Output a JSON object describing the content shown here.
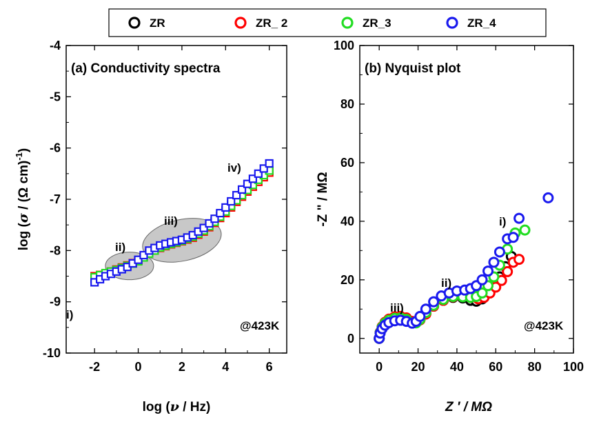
{
  "legend": [
    "ZR",
    "ZR_ 2",
    "ZR_3",
    "ZR_4"
  ],
  "series_colors": {
    "ZR": "#000000",
    "ZR_ 2": "#ff0000",
    "ZR_3": "#22dd22",
    "ZR_4": "#1a1aee"
  },
  "chart_data": [
    {
      "type": "line",
      "title": "(a) Conductivity spectra",
      "xlabel": "log (ν / Hz)",
      "ylabel": "log (σ / (Ω cm)⁻¹)",
      "xlim": [
        -3.3,
        6.8
      ],
      "ylim": [
        -10,
        -4
      ],
      "xticks": [
        -2,
        0,
        2,
        4,
        6
      ],
      "yticks": [
        -10,
        -9,
        -8,
        -7,
        -6,
        -5,
        -4
      ],
      "x": [
        -2.0,
        -1.5,
        -1.0,
        -0.5,
        0.0,
        0.5,
        1.0,
        1.5,
        2.0,
        2.5,
        3.0,
        3.5,
        4.0,
        4.5,
        5.0,
        5.5,
        6.0
      ],
      "series": [
        {
          "name": "ZR",
          "values": [
            -8.55,
            -8.45,
            -8.38,
            -8.3,
            -8.2,
            -8.05,
            -7.93,
            -7.86,
            -7.8,
            -7.72,
            -7.6,
            -7.43,
            -7.22,
            -7.0,
            -6.8,
            -6.62,
            -6.45
          ]
        },
        {
          "name": "ZR_ 2",
          "values": [
            -8.5,
            -8.45,
            -8.37,
            -8.29,
            -8.2,
            -8.05,
            -7.95,
            -7.88,
            -7.82,
            -7.75,
            -7.63,
            -7.46,
            -7.27,
            -7.05,
            -6.85,
            -6.66,
            -6.48
          ]
        },
        {
          "name": "ZR_3",
          "values": [
            -8.52,
            -8.44,
            -8.38,
            -8.3,
            -8.21,
            -8.06,
            -7.94,
            -7.87,
            -7.81,
            -7.73,
            -7.61,
            -7.44,
            -7.24,
            -7.02,
            -6.82,
            -6.62,
            -6.44
          ]
        },
        {
          "name": "ZR_4",
          "values": [
            -8.62,
            -8.5,
            -8.41,
            -8.32,
            -8.18,
            -8.0,
            -7.9,
            -7.84,
            -7.79,
            -7.7,
            -7.56,
            -7.38,
            -7.16,
            -6.92,
            -6.7,
            -6.5,
            -6.3
          ]
        }
      ],
      "annotations": [
        "i)",
        "ii)",
        "iii)",
        "iv)",
        "@423K"
      ]
    },
    {
      "type": "scatter",
      "title": "(b) Nyquist plot",
      "xlabel": "Z ′ / MΩ",
      "ylabel": "-Z \" / MΩ",
      "xlim": [
        -10,
        100
      ],
      "ylim": [
        -5,
        100
      ],
      "xticks": [
        0,
        20,
        40,
        60,
        80,
        100
      ],
      "yticks": [
        0,
        20,
        40,
        60,
        80,
        100
      ],
      "series": [
        {
          "name": "ZR",
          "points": [
            [
              0,
              0
            ],
            [
              0.5,
              2
            ],
            [
              1.5,
              3.8
            ],
            [
              3,
              5.2
            ],
            [
              5,
              6.2
            ],
            [
              8,
              7
            ],
            [
              11,
              7.2
            ],
            [
              14,
              6.7
            ],
            [
              17,
              5.5
            ],
            [
              19,
              5.5
            ],
            [
              21,
              6.5
            ],
            [
              24,
              8.5
            ],
            [
              28,
              11
            ],
            [
              33,
              13
            ],
            [
              38,
              14
            ],
            [
              43,
              13.8
            ],
            [
              47,
              13
            ],
            [
              50,
              12.7
            ],
            [
              53,
              13.5
            ],
            [
              56,
              15.5
            ],
            [
              59,
              18
            ],
            [
              62,
              21
            ],
            [
              65,
              24.5
            ],
            [
              68,
              28
            ]
          ]
        },
        {
          "name": "ZR_ 2",
          "points": [
            [
              0,
              0
            ],
            [
              0.5,
              2.1
            ],
            [
              1.5,
              4
            ],
            [
              3,
              5.5
            ],
            [
              5,
              6.6
            ],
            [
              8,
              7.4
            ],
            [
              11,
              7.5
            ],
            [
              14,
              7
            ],
            [
              17,
              5.8
            ],
            [
              19,
              5.6
            ],
            [
              21,
              6.3
            ],
            [
              24,
              8.3
            ],
            [
              28,
              11
            ],
            [
              33,
              13
            ],
            [
              38,
              14.2
            ],
            [
              43,
              14.5
            ],
            [
              47,
              14
            ],
            [
              51,
              13.5
            ],
            [
              54,
              14
            ],
            [
              57,
              15.5
            ],
            [
              60,
              17.5
            ],
            [
              63,
              19.8
            ],
            [
              66,
              22.8
            ],
            [
              69,
              26
            ],
            [
              72,
              27
            ]
          ]
        },
        {
          "name": "ZR_3",
          "points": [
            [
              0,
              0
            ],
            [
              0.5,
              2
            ],
            [
              1.5,
              3.8
            ],
            [
              3,
              5.2
            ],
            [
              5,
              6.2
            ],
            [
              8,
              6.9
            ],
            [
              11,
              7
            ],
            [
              14,
              6.5
            ],
            [
              17,
              5.3
            ],
            [
              19,
              5.3
            ],
            [
              21,
              6.5
            ],
            [
              24,
              8.8
            ],
            [
              28,
              11.3
            ],
            [
              33,
              13.3
            ],
            [
              38,
              14.3
            ],
            [
              43,
              14.2
            ],
            [
              47,
              14
            ],
            [
              50,
              14.3
            ],
            [
              53,
              15.5
            ],
            [
              56,
              18
            ],
            [
              59,
              21
            ],
            [
              62,
              25
            ],
            [
              66,
              30.5
            ],
            [
              70,
              36
            ],
            [
              75,
              37
            ]
          ]
        },
        {
          "name": "ZR_4",
          "points": [
            [
              0,
              0
            ],
            [
              0.5,
              1.8
            ],
            [
              1.5,
              3.3
            ],
            [
              3,
              4.5
            ],
            [
              5,
              5.4
            ],
            [
              8,
              6
            ],
            [
              11,
              6.2
            ],
            [
              14,
              5.8
            ],
            [
              17,
              5.2
            ],
            [
              19,
              5.8
            ],
            [
              21,
              7.5
            ],
            [
              24,
              10
            ],
            [
              28,
              12.5
            ],
            [
              32,
              14.5
            ],
            [
              36,
              15.5
            ],
            [
              40,
              16.2
            ],
            [
              44,
              16.5
            ],
            [
              47,
              17
            ],
            [
              50,
              18
            ],
            [
              53,
              20
            ],
            [
              56,
              23
            ],
            [
              59,
              26
            ],
            [
              62,
              29.5
            ],
            [
              66,
              34
            ],
            [
              69,
              34.5
            ],
            [
              72,
              41
            ],
            [
              87,
              48
            ]
          ]
        }
      ],
      "annotations": [
        "iii)",
        "ii)",
        "i)",
        "@423K"
      ]
    }
  ]
}
